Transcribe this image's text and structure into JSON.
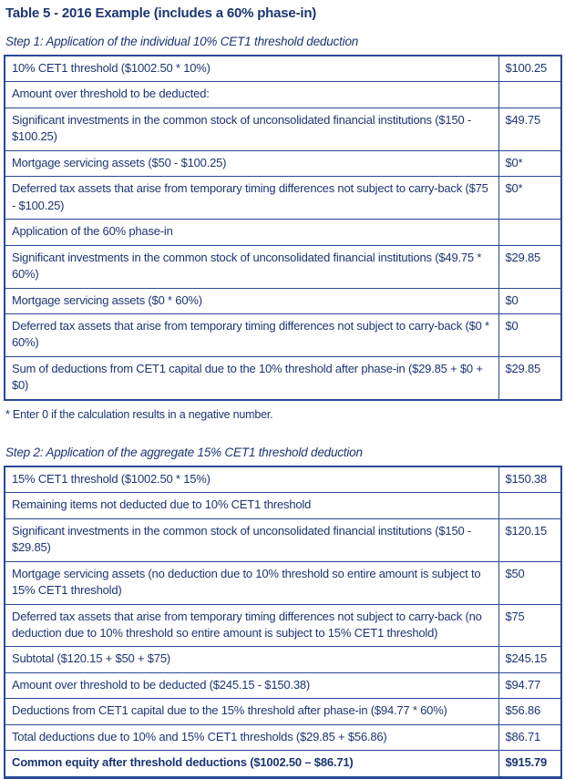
{
  "page": {
    "title": "Table 5 - 2016 Example (includes a 60% phase-in)",
    "footnote": "* Enter 0 if the calculation results in a negative number."
  },
  "colors": {
    "text_navy": "#1c3572",
    "border_navy": "#2a4896"
  },
  "step1": {
    "heading": "Step 1: Application of the individual 10% CET1 threshold deduction",
    "rows": [
      {
        "label": "10% CET1 threshold ($1002.50 * 10%)",
        "value": "$100.25"
      },
      {
        "label": "Amount over threshold to be deducted:",
        "value": ""
      },
      {
        "label": "Significant investments in the common stock of unconsolidated financial institutions ($150 - $100.25)",
        "value": "$49.75"
      },
      {
        "label": "Mortgage servicing assets ($50 - $100.25)",
        "value": "$0*"
      },
      {
        "label": "Deferred tax assets that arise from temporary timing differences not subject to carry-back ($75 - $100.25)",
        "value": "$0*"
      },
      {
        "label": "Application of the 60% phase-in",
        "value": ""
      },
      {
        "label": "Significant investments in the common stock of unconsolidated financial institutions ($49.75 * 60%)",
        "value": "$29.85"
      },
      {
        "label": "Mortgage servicing assets ($0 * 60%)",
        "value": "$0"
      },
      {
        "label": "Deferred tax assets that arise from temporary timing differences not subject to carry-back ($0 * 60%)",
        "value": "$0"
      },
      {
        "label": "Sum of deductions from CET1 capital due to the 10% threshold after phase-in ($29.85 + $0 + $0)",
        "value": "$29.85"
      }
    ]
  },
  "step2": {
    "heading": "Step 2: Application of the aggregate 15% CET1 threshold deduction",
    "rows": [
      {
        "label": "15% CET1 threshold ($1002.50 * 15%)",
        "value": "$150.38"
      },
      {
        "label": "Remaining items not deducted due to 10% CET1 threshold",
        "value": ""
      },
      {
        "label": "Significant investments in the common stock of unconsolidated financial institutions ($150 - $29.85)",
        "value": "$120.15"
      },
      {
        "label": "Mortgage servicing assets (no deduction due to 10% threshold so entire amount is subject to 15% CET1 threshold)",
        "value": "$50"
      },
      {
        "label": "Deferred tax assets that arise from temporary timing differences not subject to carry-back (no deduction due to 10% threshold so entire amount is subject to 15% CET1 threshold)",
        "value": "$75"
      },
      {
        "label": "Subtotal ($120.15 + $50 + $75)",
        "value": "$245.15"
      },
      {
        "label": "Amount over threshold to be deducted ($245.15 - $150.38)",
        "value": "$94.77"
      },
      {
        "label": "Deductions from CET1 capital due to the 15% threshold after phase-in ($94.77 * 60%)",
        "value": "$56.86"
      },
      {
        "label": "Total deductions due to 10% and 15% CET1 thresholds ($29.85 + $56.86)",
        "value": "$86.71"
      },
      {
        "label": "Common equity after threshold deductions ($1002.50 – $86.71)",
        "value": "$915.79",
        "emphasis": "bold"
      }
    ]
  }
}
